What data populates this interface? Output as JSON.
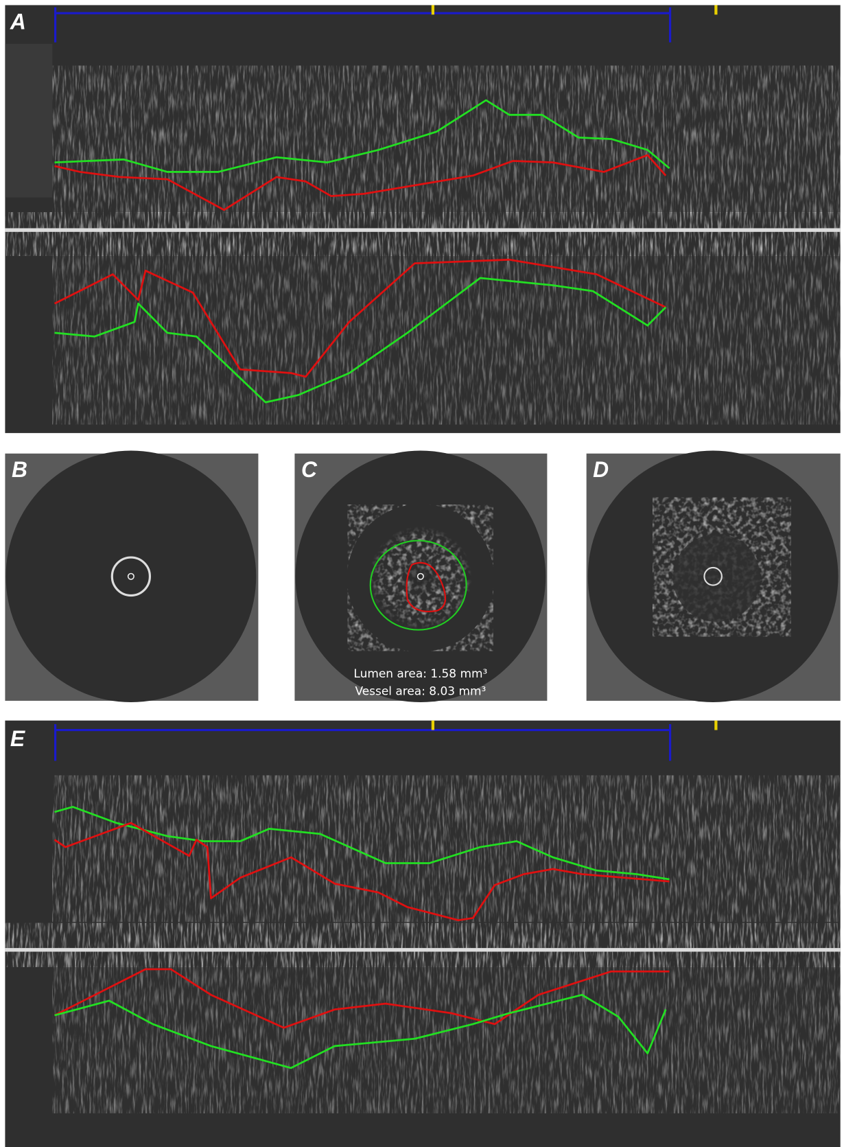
{
  "panel_labels": [
    "A",
    "B",
    "C",
    "D",
    "E"
  ],
  "panel_c": {
    "lumen_area": "Lumen area: 1.58 mm³",
    "vessel_area": "Vessel area: 8.03 mm³"
  }
}
